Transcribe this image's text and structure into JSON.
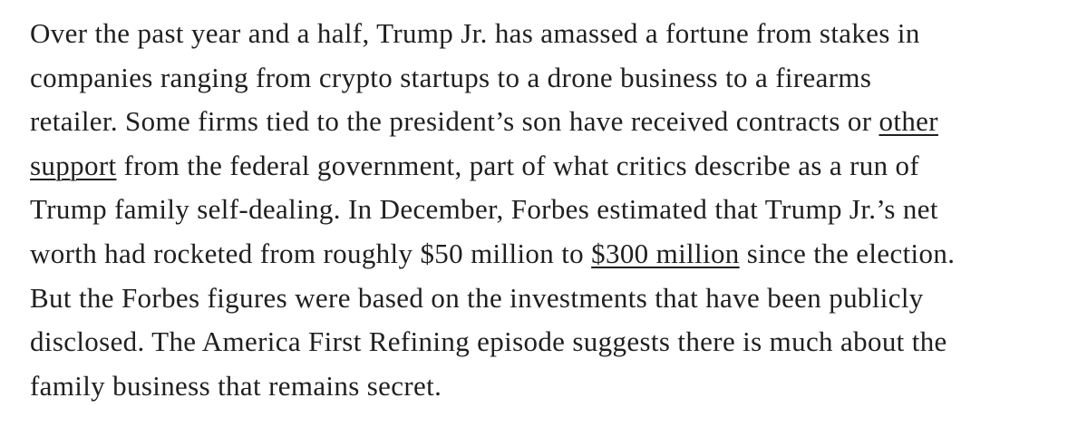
{
  "paragraph": {
    "lines": [
      [
        {
          "text": "Over the past year and a half, Trump Jr. has amassed a fortune from stakes in"
        }
      ],
      [
        {
          "text": "companies ranging from crypto startups to a drone business to a firearms"
        }
      ],
      [
        {
          "text": "retailer. Some firms tied to the president’s son have received contracts or "
        },
        {
          "text": "other",
          "link": true
        }
      ],
      [
        {
          "text": "support",
          "link": true
        },
        {
          "text": " from the federal government, part of what critics describe as a run of"
        }
      ],
      [
        {
          "text": "Trump family self-dealing. In December, Forbes estimated that Trump Jr.’s net"
        }
      ],
      [
        {
          "text": "worth had rocketed from roughly $50 million to "
        },
        {
          "text": "$300 million",
          "link": true
        },
        {
          "text": " since the election."
        }
      ],
      [
        {
          "text": "But the Forbes figures were based on the investments that have been publicly"
        }
      ],
      [
        {
          "text": "disclosed. The America First Refining episode suggests there is much about the"
        }
      ],
      [
        {
          "text": "family business that remains secret."
        }
      ]
    ]
  }
}
